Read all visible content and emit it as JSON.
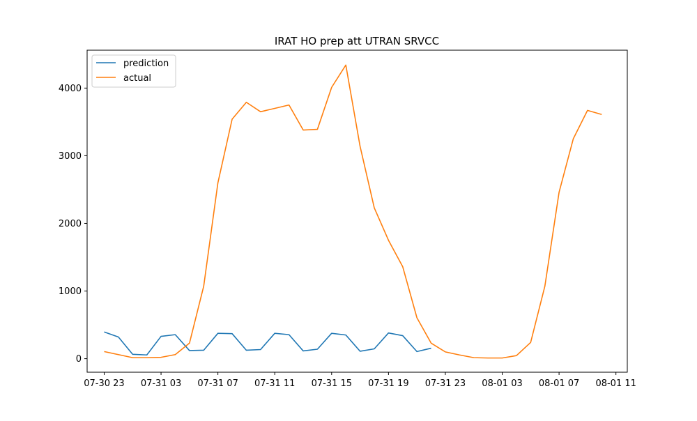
{
  "chart_data": {
    "type": "line",
    "title": "IRAT HO prep att UTRAN SRVCC",
    "xlabel": "",
    "ylabel": "",
    "x_tick_labels": [
      "07-30 23",
      "07-31 03",
      "07-31 07",
      "07-31 11",
      "07-31 15",
      "07-31 19",
      "07-31 23",
      "08-01 03",
      "08-01 07",
      "08-01 11"
    ],
    "y_tick_labels": [
      "0",
      "1000",
      "2000",
      "3000",
      "4000"
    ],
    "xlim_hours": [
      -1.2,
      36.8
    ],
    "ylim": [
      -200,
      4560
    ],
    "legend_position": "upper left",
    "grid": false,
    "series": [
      {
        "name": "prediction",
        "color": "#1f77b4",
        "x_hours": [
          0,
          1,
          2,
          3,
          4,
          5,
          6,
          7,
          8,
          9,
          10,
          11,
          12,
          13,
          14,
          15,
          16,
          17,
          18,
          19,
          20,
          21,
          22,
          23
        ],
        "values": [
          395,
          320,
          65,
          55,
          330,
          355,
          120,
          125,
          375,
          370,
          125,
          135,
          375,
          355,
          115,
          140,
          375,
          350,
          110,
          145,
          380,
          340,
          105,
          155
        ]
      },
      {
        "name": "actual",
        "color": "#ff7f0e",
        "x_hours": [
          0,
          1,
          2,
          3,
          4,
          5,
          6,
          7,
          8,
          9,
          10,
          11,
          12,
          13,
          14,
          15,
          16,
          17,
          18,
          19,
          20,
          21,
          22,
          23,
          24,
          25,
          26,
          27,
          28,
          29,
          30,
          31,
          32,
          33,
          34,
          35
        ],
        "values": [
          105,
          60,
          15,
          15,
          20,
          60,
          230,
          1070,
          2600,
          3540,
          3790,
          3650,
          3700,
          3750,
          3380,
          3390,
          4010,
          4340,
          3140,
          2230,
          1750,
          1360,
          605,
          230,
          100,
          55,
          15,
          10,
          10,
          45,
          240,
          1070,
          2460,
          3250,
          3670,
          3610
        ]
      }
    ]
  }
}
